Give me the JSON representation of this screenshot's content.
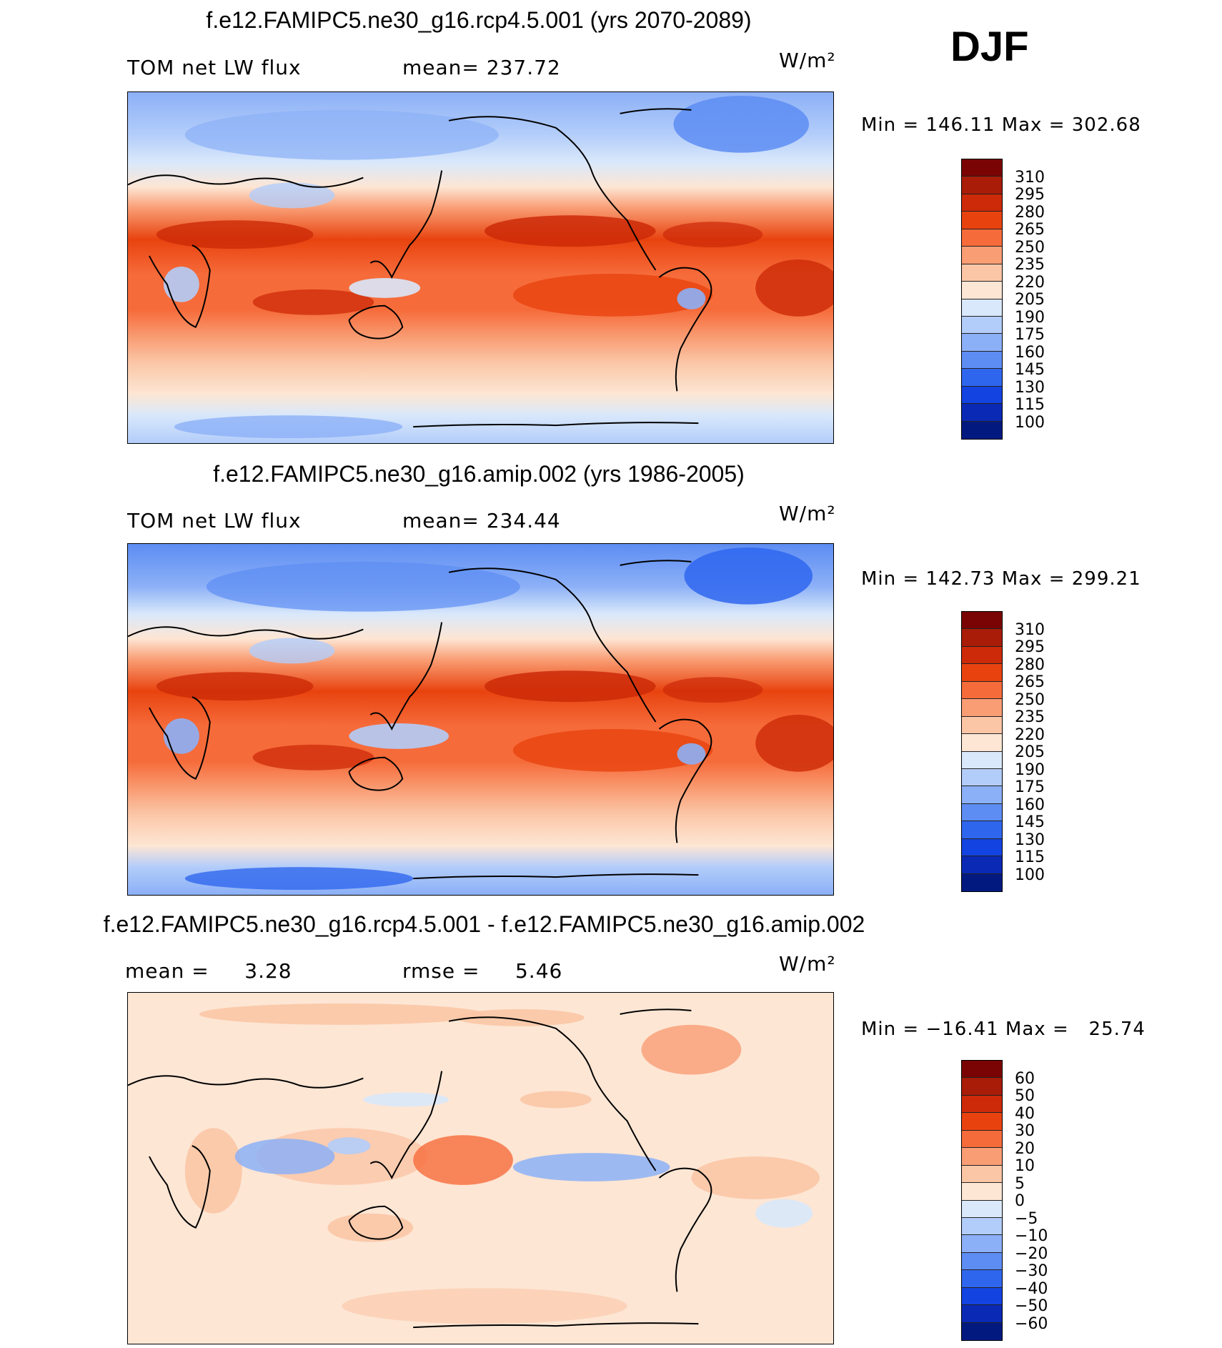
{
  "season": "DJF",
  "units": "W/m²",
  "panels": [
    {
      "title": "f.e12.FAMIPC5.ne30_g16.rcp4.5.001 (yrs 2070-2089)",
      "left_label": "TOM net LW flux",
      "center_label": "mean= 237.72",
      "minmax": "Min = 146.11 Max = 302.68",
      "colorbar_ticks": [
        "310",
        "295",
        "280",
        "265",
        "250",
        "235",
        "220",
        "205",
        "190",
        "175",
        "160",
        "145",
        "130",
        "115",
        "100"
      ]
    },
    {
      "title": "f.e12.FAMIPC5.ne30_g16.amip.002 (yrs 1986-2005)",
      "left_label": "TOM net LW flux",
      "center_label": "mean= 234.44",
      "minmax": "Min = 142.73 Max = 299.21",
      "colorbar_ticks": [
        "310",
        "295",
        "280",
        "265",
        "250",
        "235",
        "220",
        "205",
        "190",
        "175",
        "160",
        "145",
        "130",
        "115",
        "100"
      ]
    },
    {
      "title": "f.e12.FAMIPC5.ne30_g16.rcp4.5.001 - f.e12.FAMIPC5.ne30_g16.amip.002",
      "left_label": "mean =     3.28",
      "center_label": "rmse =     5.46",
      "minmax": "Min = −16.41 Max =   25.74",
      "colorbar_ticks": [
        "60",
        "50",
        "40",
        "30",
        "20",
        "10",
        "5",
        "0",
        "−5",
        "−10",
        "−20",
        "−30",
        "−40",
        "−50",
        "−60"
      ]
    }
  ],
  "colorbar_colors": [
    "#7a0403",
    "#a81c08",
    "#cc2a08",
    "#e8430f",
    "#f66b3a",
    "#f99d74",
    "#fbc6a6",
    "#fde6d4",
    "#d9e8fb",
    "#b3cdfa",
    "#8cb0f7",
    "#5d8df3",
    "#2f66ee",
    "#1343e0",
    "#0a29b4",
    "#021a80"
  ],
  "chart_data": [
    {
      "type": "heatmap",
      "title": "f.e12.FAMIPC5.ne30_g16.rcp4.5.001 (yrs 2070-2089)",
      "variable": "TOM net LW flux",
      "units": "W/m²",
      "mean": 237.72,
      "min": 146.11,
      "max": 302.68,
      "contour_levels": [
        100,
        115,
        130,
        145,
        160,
        175,
        190,
        205,
        220,
        235,
        250,
        265,
        280,
        295,
        310
      ],
      "projection": "cylindrical equidistant, centered on Pacific"
    },
    {
      "type": "heatmap",
      "title": "f.e12.FAMIPC5.ne30_g16.amip.002 (yrs 1986-2005)",
      "variable": "TOM net LW flux",
      "units": "W/m²",
      "mean": 234.44,
      "min": 142.73,
      "max": 299.21,
      "contour_levels": [
        100,
        115,
        130,
        145,
        160,
        175,
        190,
        205,
        220,
        235,
        250,
        265,
        280,
        295,
        310
      ],
      "projection": "cylindrical equidistant, centered on Pacific"
    },
    {
      "type": "heatmap",
      "title": "f.e12.FAMIPC5.ne30_g16.rcp4.5.001 - f.e12.FAMIPC5.ne30_g16.amip.002",
      "units": "W/m²",
      "mean": 3.28,
      "rmse": 5.46,
      "min": -16.41,
      "max": 25.74,
      "contour_levels": [
        -60,
        -50,
        -40,
        -30,
        -20,
        -10,
        -5,
        0,
        5,
        10,
        20,
        30,
        40,
        50,
        60
      ],
      "projection": "cylindrical equidistant, centered on Pacific"
    }
  ]
}
